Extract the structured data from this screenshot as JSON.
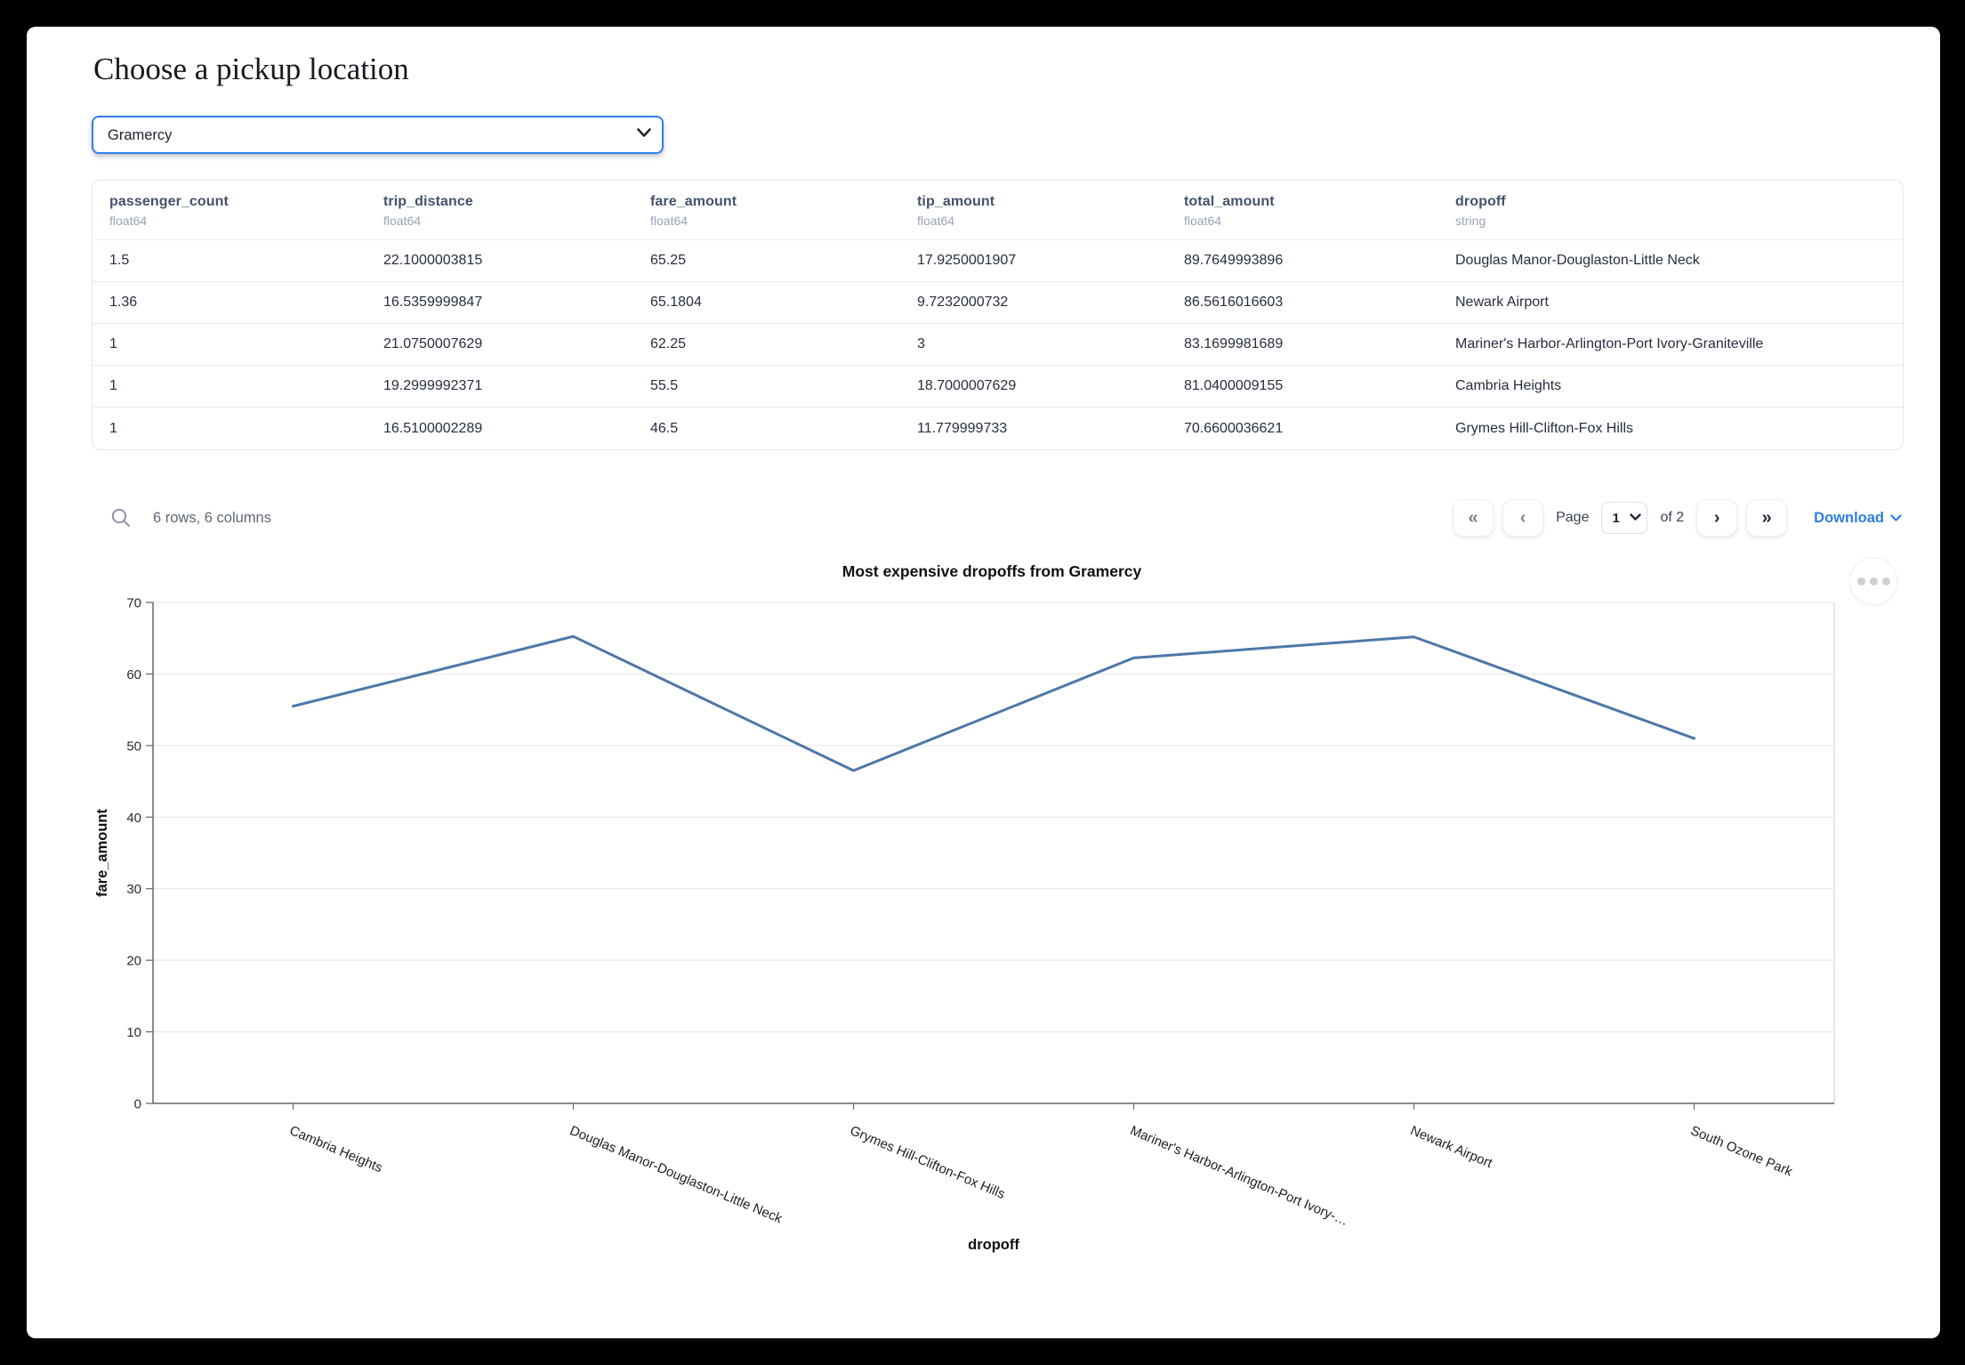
{
  "header": {
    "title": "Choose a pickup location"
  },
  "pickup_select": {
    "value": "Gramercy"
  },
  "table": {
    "columns": [
      {
        "name": "passenger_count",
        "dtype": "float64"
      },
      {
        "name": "trip_distance",
        "dtype": "float64"
      },
      {
        "name": "fare_amount",
        "dtype": "float64"
      },
      {
        "name": "tip_amount",
        "dtype": "float64"
      },
      {
        "name": "total_amount",
        "dtype": "float64"
      },
      {
        "name": "dropoff",
        "dtype": "string"
      }
    ],
    "rows": [
      [
        "1.5",
        "22.1000003815",
        "65.25",
        "17.9250001907",
        "89.7649993896",
        "Douglas Manor-Douglaston-Little Neck"
      ],
      [
        "1.36",
        "16.5359999847",
        "65.1804",
        "9.7232000732",
        "86.5616016603",
        "Newark Airport"
      ],
      [
        "1",
        "21.0750007629",
        "62.25",
        "3",
        "83.1699981689",
        "Mariner's Harbor-Arlington-Port Ivory-Graniteville"
      ],
      [
        "1",
        "19.2999992371",
        "55.5",
        "18.7000007629",
        "81.0400009155",
        "Cambria Heights"
      ],
      [
        "1",
        "16.5100002289",
        "46.5",
        "11.779999733",
        "70.6600036621",
        "Grymes Hill-Clifton-Fox Hills"
      ]
    ],
    "summary": "6 rows, 6 columns"
  },
  "pagination": {
    "first_icon": "«",
    "prev_icon": "‹",
    "page_label": "Page",
    "page_value": "1",
    "of_label": "of 2",
    "next_icon": "›",
    "last_icon": "»",
    "download_label": "Download"
  },
  "chart_data": {
    "type": "line",
    "title": "Most expensive dropoffs from Gramercy",
    "xlabel": "dropoff",
    "ylabel": "fare_amount",
    "categories": [
      "Cambria Heights",
      "Douglas Manor-Douglaston-Little Neck",
      "Grymes Hill-Clifton-Fox Hills",
      "Mariner's Harbor-Arlington-Port Ivory-…",
      "Newark Airport",
      "South Ozone Park"
    ],
    "values": [
      55.5,
      65.25,
      46.5,
      62.25,
      65.1804,
      51
    ],
    "ylim": [
      0,
      70
    ],
    "yticks": [
      0,
      10,
      20,
      30,
      40,
      50,
      60,
      70
    ],
    "grid": true,
    "legend": "none",
    "line_color": "#4c78a8"
  },
  "colors": {
    "accent_blue": "#2f80ed",
    "link_blue": "#2d7de1",
    "line_blue": "#4c78a8",
    "header_text": "#44516b",
    "dtype_text": "#9aa3b4"
  }
}
